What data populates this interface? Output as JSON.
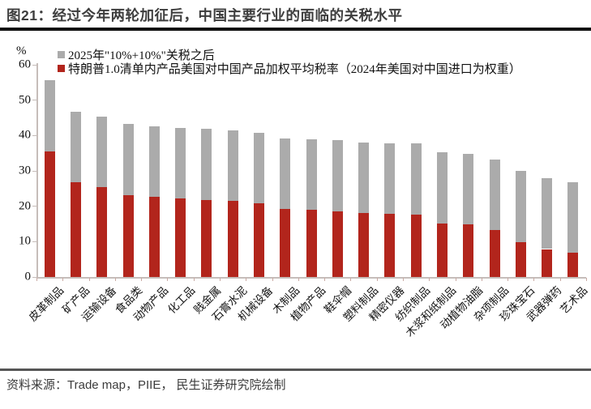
{
  "figure": {
    "title": "图21：经过今年两轮加征后，中国主要行业的面临的关税水平",
    "source": "资料来源：Trade map，PIIE， 民生证券研究院绘制"
  },
  "chart_data": {
    "type": "bar",
    "stacked": true,
    "title": "经过今年两轮加征后，中国主要行业的面临的关税水平",
    "ylabel": "%",
    "ylim": [
      0,
      60
    ],
    "yticks": [
      0,
      10,
      20,
      30,
      40,
      50,
      60
    ],
    "grid": false,
    "legend_position": "top-left",
    "categories": [
      "皮革制品",
      "矿产品",
      "运输设备",
      "食品类",
      "动物产品",
      "化工品",
      "贱金属",
      "石膏水泥",
      "机械设备",
      "木制品",
      "植物产品",
      "鞋伞帽",
      "塑料制品",
      "精密仪器",
      "纺织制品",
      "木浆和纸制品",
      "动植物油脂",
      "杂项制品",
      "珍珠宝石",
      "武器弹药",
      "艺术品"
    ],
    "series": [
      {
        "name": "2025年\"10%+10%\"关税之后",
        "color": "#ababab",
        "note": "total tariff level after 2025 10%+10% rounds (top of stacked bar)",
        "values": [
          55.6,
          46.8,
          45.4,
          43.2,
          42.7,
          42.2,
          41.8,
          41.5,
          40.8,
          39.2,
          39.0,
          38.6,
          38.0,
          37.9,
          37.7,
          35.2,
          34.9,
          33.2,
          29.9,
          27.9,
          26.9
        ]
      },
      {
        "name": "特朗普1.0清单内产品美国对中国产品加权平均税率（2024年美国对中国进口为权重）",
        "color": "#b2251c",
        "note": "red lower segment of stacked bar",
        "values": [
          35.6,
          26.8,
          25.4,
          23.2,
          22.7,
          22.2,
          21.8,
          21.5,
          20.8,
          19.2,
          19.0,
          18.6,
          18.0,
          17.9,
          17.7,
          15.2,
          14.9,
          13.2,
          9.9,
          7.9,
          6.9
        ]
      }
    ]
  }
}
